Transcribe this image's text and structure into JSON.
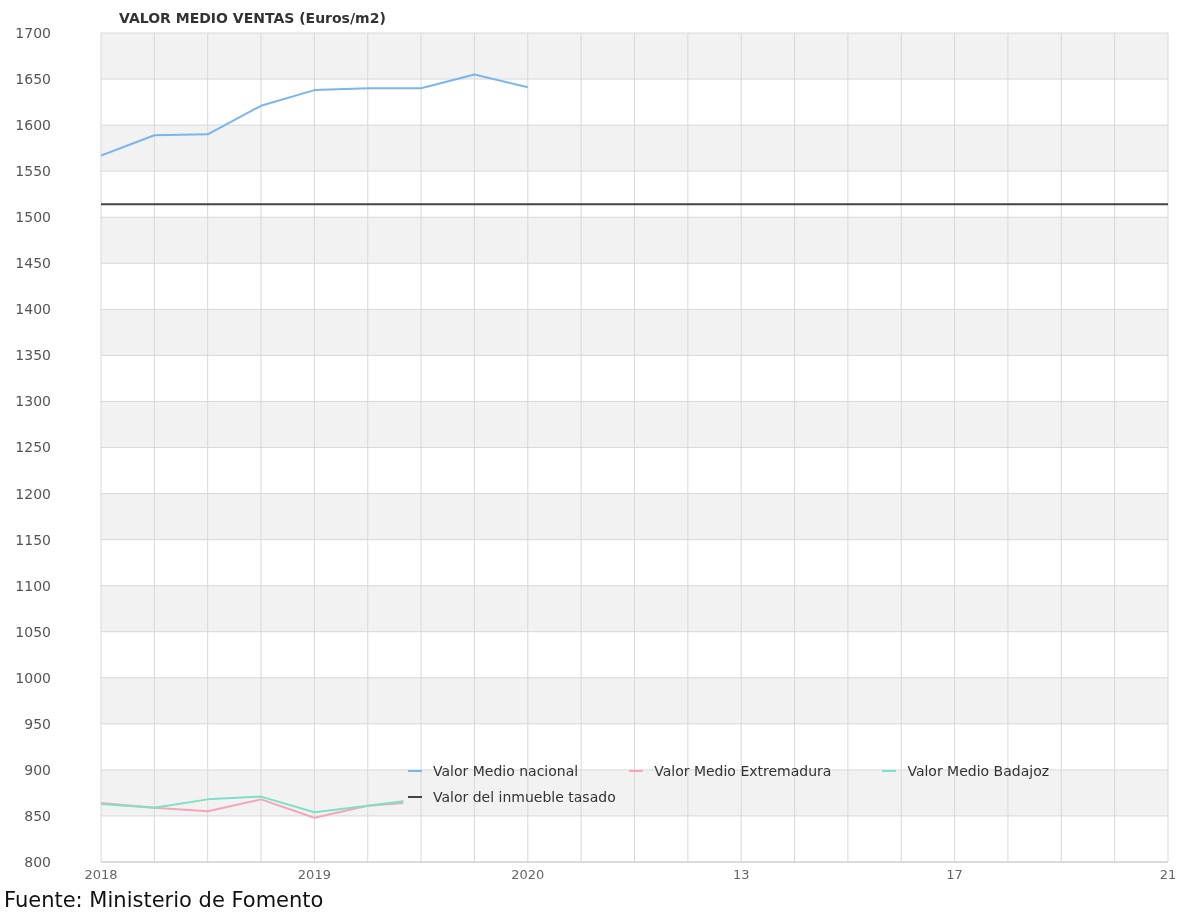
{
  "chart_data": {
    "type": "line",
    "title": "VALOR MEDIO VENTAS (Euros/m2)",
    "annotations": [
      "Fuente: Ministerio de Fomento"
    ],
    "categories": [
      "2018",
      null,
      null,
      null,
      null,
      null,
      null,
      null,
      null,
      null,
      null,
      null,
      "2019",
      null,
      null,
      null,
      null,
      null,
      null,
      null,
      null,
      null,
      null,
      null,
      "2020",
      null,
      null,
      null,
      null,
      null,
      null,
      null,
      null,
      null,
      null,
      null,
      "13",
      null,
      null,
      null,
      null,
      null,
      null,
      null,
      null,
      null,
      null,
      null,
      "17",
      null,
      null,
      null,
      null,
      null,
      null,
      null,
      null,
      null,
      null,
      null,
      "21"
    ],
    "ylim": [
      800,
      1700
    ],
    "yticks": [
      800,
      850,
      900,
      950,
      1000,
      1050,
      1100,
      1150,
      1200,
      1250,
      1300,
      1350,
      1400,
      1450,
      1500,
      1550,
      1600,
      1650,
      1700
    ],
    "grid": true,
    "legend": "bottom right",
    "series": [
      {
        "name": "Valor Medio nacional",
        "color": "#7cb5ec",
        "values": [
          1567,
          null,
          null,
          1589,
          null,
          null,
          1590,
          null,
          null,
          1621,
          null,
          null,
          1638,
          null,
          null,
          1640,
          null,
          null,
          1640,
          null,
          null,
          1655,
          null,
          null,
          1641,
          null,
          null,
          null,
          null,
          null,
          null,
          null,
          null,
          null,
          null,
          null,
          null,
          null,
          null,
          null,
          null,
          null,
          null,
          null,
          null,
          null,
          null,
          null,
          null,
          null,
          null,
          null,
          null,
          null,
          null,
          null,
          null,
          null,
          null,
          null,
          null
        ]
      },
      {
        "name": "Valor Medio Extremadura",
        "color": "#f4a6b8",
        "values": [
          864,
          null,
          null,
          859,
          null,
          null,
          855,
          null,
          null,
          868,
          null,
          null,
          848,
          null,
          null,
          861,
          null,
          864,
          null,
          null,
          null,
          null,
          null,
          null,
          null,
          null,
          null,
          null,
          null,
          null,
          null,
          null,
          null,
          null,
          null,
          null,
          null,
          null,
          null,
          null,
          null,
          null,
          null,
          null,
          null,
          null,
          null,
          null,
          null,
          null,
          null,
          null,
          null,
          null,
          null,
          null,
          null,
          null,
          null,
          null,
          null
        ]
      },
      {
        "name": "Valor Medio Badajoz",
        "color": "#7ee0c4",
        "values": [
          863,
          null,
          null,
          859,
          null,
          null,
          868,
          null,
          null,
          871,
          null,
          null,
          854,
          null,
          null,
          861,
          null,
          866,
          null,
          null,
          null,
          null,
          null,
          null,
          null,
          null,
          null,
          null,
          null,
          null,
          null,
          null,
          null,
          null,
          null,
          null,
          null,
          null,
          null,
          null,
          null,
          null,
          null,
          null,
          null,
          null,
          null,
          null,
          null,
          null,
          null,
          null,
          null,
          null,
          null,
          null,
          null,
          null,
          null,
          null,
          null
        ]
      },
      {
        "name": "Valor del inmueble tasado",
        "color": "#434348",
        "values": [
          1514,
          1514,
          1514,
          1514,
          1514,
          1514,
          1514,
          1514,
          1514,
          1514,
          1514,
          1514,
          1514,
          1514,
          1514,
          1514,
          1514,
          1514,
          1514,
          1514,
          1514,
          1514,
          1514,
          1514,
          1514,
          1514,
          1514,
          1514,
          1514,
          1514,
          1514,
          1514,
          1514,
          1514,
          1514,
          1514,
          1514,
          1514,
          1514,
          1514,
          1514,
          1514,
          1514,
          1514,
          1514,
          1514,
          1514,
          1514,
          1514,
          1514,
          1514,
          1514,
          1514,
          1514,
          1514,
          1514,
          1514,
          1514,
          1514,
          1514,
          1514
        ]
      }
    ]
  }
}
